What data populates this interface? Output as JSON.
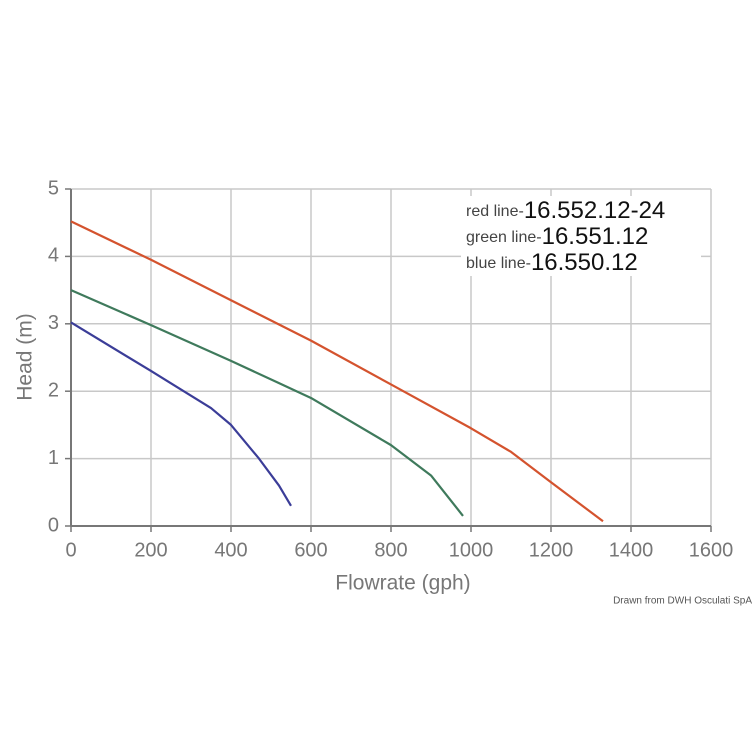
{
  "chart_data": {
    "type": "line",
    "x_label": "Flowrate (gph)",
    "y_label": "Head (m)",
    "xlim": [
      0,
      1600
    ],
    "xticks": [
      0,
      200,
      400,
      600,
      800,
      1000,
      1200,
      1400,
      1600
    ],
    "ylim": [
      0,
      5
    ],
    "yticks": [
      0,
      1,
      2,
      3,
      4,
      5
    ],
    "grid": true,
    "series": [
      {
        "legend_prefix": "red line-",
        "name": "16.552.12-24",
        "color": "#d4532e",
        "x": [
          0,
          200,
          400,
          600,
          800,
          1000,
          1100,
          1200,
          1330
        ],
        "values": [
          4.52,
          3.95,
          3.35,
          2.75,
          2.1,
          1.45,
          1.1,
          0.65,
          0.07
        ]
      },
      {
        "legend_prefix": "green line-",
        "name": "16.551.12",
        "color": "#3f7a5c",
        "x": [
          0,
          200,
          400,
          600,
          800,
          900,
          980
        ],
        "values": [
          3.5,
          2.98,
          2.45,
          1.9,
          1.2,
          0.75,
          0.15
        ]
      },
      {
        "legend_prefix": "blue line-",
        "name": "16.550.12",
        "color": "#3b3d98",
        "x": [
          0,
          200,
          350,
          400,
          470,
          520,
          550
        ],
        "values": [
          3.02,
          2.3,
          1.75,
          1.5,
          1.0,
          0.6,
          0.3
        ]
      }
    ],
    "credit": "Drawn from DWH Osculati SpA"
  }
}
